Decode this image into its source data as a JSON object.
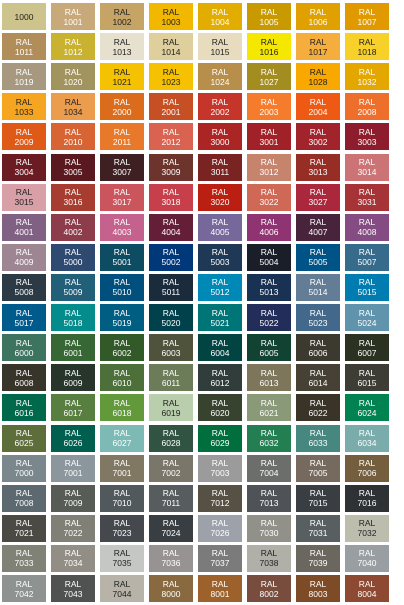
{
  "swatches": [
    {
      "prefix": "",
      "code": "1000",
      "bg": "#CDC38C",
      "fg": "#222222"
    },
    {
      "prefix": "RAL",
      "code": "1001",
      "bg": "#C7A97A",
      "fg": "#ffffff"
    },
    {
      "prefix": "RAL",
      "code": "1002",
      "bg": "#C6A466",
      "fg": "#222222"
    },
    {
      "prefix": "RAL",
      "code": "1003",
      "bg": "#F2B800",
      "fg": "#222222"
    },
    {
      "prefix": "RAL",
      "code": "1004",
      "bg": "#E2AD00",
      "fg": "#ffffff"
    },
    {
      "prefix": "RAL",
      "code": "1005",
      "bg": "#C99A00",
      "fg": "#ffffff"
    },
    {
      "prefix": "RAL",
      "code": "1006",
      "bg": "#E0A100",
      "fg": "#ffffff"
    },
    {
      "prefix": "RAL",
      "code": "1007",
      "bg": "#E09A00",
      "fg": "#ffffff"
    },
    {
      "prefix": "RAL",
      "code": "1011",
      "bg": "#B18D59",
      "fg": "#ffffff"
    },
    {
      "prefix": "RAL",
      "code": "1012",
      "bg": "#C8B22F",
      "fg": "#ffffff"
    },
    {
      "prefix": "RAL",
      "code": "1013",
      "bg": "#E6E1CF",
      "fg": "#222222"
    },
    {
      "prefix": "RAL",
      "code": "1014",
      "bg": "#DECF9D",
      "fg": "#222222"
    },
    {
      "prefix": "RAL",
      "code": "1015",
      "bg": "#E7DDBE",
      "fg": "#222222"
    },
    {
      "prefix": "RAL",
      "code": "1016",
      "bg": "#F5E700",
      "fg": "#222222"
    },
    {
      "prefix": "RAL",
      "code": "1017",
      "bg": "#F5AE3D",
      "fg": "#222222"
    },
    {
      "prefix": "RAL",
      "code": "1018",
      "bg": "#F7D02A",
      "fg": "#222222"
    },
    {
      "prefix": "RAL",
      "code": "1019",
      "bg": "#A69980",
      "fg": "#ffffff"
    },
    {
      "prefix": "RAL",
      "code": "1020",
      "bg": "#A2945F",
      "fg": "#ffffff"
    },
    {
      "prefix": "RAL",
      "code": "1021",
      "bg": "#F4C200",
      "fg": "#222222"
    },
    {
      "prefix": "RAL",
      "code": "1023",
      "bg": "#F6C100",
      "fg": "#222222"
    },
    {
      "prefix": "RAL",
      "code": "1024",
      "bg": "#B78E4A",
      "fg": "#ffffff"
    },
    {
      "prefix": "RAL",
      "code": "1027",
      "bg": "#A38C20",
      "fg": "#ffffff"
    },
    {
      "prefix": "RAL",
      "code": "1028",
      "bg": "#F9A800",
      "fg": "#222222"
    },
    {
      "prefix": "RAL",
      "code": "1032",
      "bg": "#E4A700",
      "fg": "#ffffff"
    },
    {
      "prefix": "RAL",
      "code": "1033",
      "bg": "#F6A521",
      "fg": "#222222"
    },
    {
      "prefix": "RAL",
      "code": "1034",
      "bg": "#EB9D4D",
      "fg": "#222222"
    },
    {
      "prefix": "RAL",
      "code": "2000",
      "bg": "#DB6C1C",
      "fg": "#ffffff"
    },
    {
      "prefix": "RAL",
      "code": "2001",
      "bg": "#C64F24",
      "fg": "#ffffff"
    },
    {
      "prefix": "RAL",
      "code": "2002",
      "bg": "#C6352A",
      "fg": "#ffffff"
    },
    {
      "prefix": "RAL",
      "code": "2003",
      "bg": "#F67C2D",
      "fg": "#ffffff"
    },
    {
      "prefix": "RAL",
      "code": "2004",
      "bg": "#EE5A14",
      "fg": "#ffffff"
    },
    {
      "prefix": "RAL",
      "code": "2008",
      "bg": "#EE6E2C",
      "fg": "#ffffff"
    },
    {
      "prefix": "RAL",
      "code": "2009",
      "bg": "#E05A17",
      "fg": "#ffffff"
    },
    {
      "prefix": "RAL",
      "code": "2010",
      "bg": "#D96433",
      "fg": "#ffffff"
    },
    {
      "prefix": "RAL",
      "code": "2011",
      "bg": "#E8782A",
      "fg": "#ffffff"
    },
    {
      "prefix": "RAL",
      "code": "2012",
      "bg": "#DA6251",
      "fg": "#ffffff"
    },
    {
      "prefix": "RAL",
      "code": "3000",
      "bg": "#AB2525",
      "fg": "#ffffff"
    },
    {
      "prefix": "RAL",
      "code": "3001",
      "bg": "#A02128",
      "fg": "#ffffff"
    },
    {
      "prefix": "RAL",
      "code": "3002",
      "bg": "#A1232B",
      "fg": "#ffffff"
    },
    {
      "prefix": "RAL",
      "code": "3003",
      "bg": "#8D1D2C",
      "fg": "#ffffff"
    },
    {
      "prefix": "RAL",
      "code": "3004",
      "bg": "#6B1C23",
      "fg": "#ffffff"
    },
    {
      "prefix": "RAL",
      "code": "3005",
      "bg": "#59191F",
      "fg": "#ffffff"
    },
    {
      "prefix": "RAL",
      "code": "3007",
      "bg": "#3E2022",
      "fg": "#ffffff"
    },
    {
      "prefix": "RAL",
      "code": "3009",
      "bg": "#6D342D",
      "fg": "#ffffff"
    },
    {
      "prefix": "RAL",
      "code": "3011",
      "bg": "#792423",
      "fg": "#ffffff"
    },
    {
      "prefix": "RAL",
      "code": "3012",
      "bg": "#C6846D",
      "fg": "#ffffff"
    },
    {
      "prefix": "RAL",
      "code": "3013",
      "bg": "#972E25",
      "fg": "#ffffff"
    },
    {
      "prefix": "RAL",
      "code": "3014",
      "bg": "#CB7375",
      "fg": "#ffffff"
    },
    {
      "prefix": "RAL",
      "code": "3015",
      "bg": "#D8A0A6",
      "fg": "#222222"
    },
    {
      "prefix": "RAL",
      "code": "3016",
      "bg": "#A63D30",
      "fg": "#ffffff"
    },
    {
      "prefix": "RAL",
      "code": "3017",
      "bg": "#CA555D",
      "fg": "#ffffff"
    },
    {
      "prefix": "RAL",
      "code": "3018",
      "bg": "#C63F4A",
      "fg": "#ffffff"
    },
    {
      "prefix": "RAL",
      "code": "3020",
      "bg": "#BB1F11",
      "fg": "#ffffff"
    },
    {
      "prefix": "RAL",
      "code": "3022",
      "bg": "#CF6955",
      "fg": "#ffffff"
    },
    {
      "prefix": "RAL",
      "code": "3027",
      "bg": "#AB273C",
      "fg": "#ffffff"
    },
    {
      "prefix": "RAL",
      "code": "3031",
      "bg": "#A63437",
      "fg": "#ffffff"
    },
    {
      "prefix": "RAL",
      "code": "4001",
      "bg": "#816183",
      "fg": "#ffffff"
    },
    {
      "prefix": "RAL",
      "code": "4002",
      "bg": "#8D3C4B",
      "fg": "#ffffff"
    },
    {
      "prefix": "RAL",
      "code": "4003",
      "bg": "#C4618C",
      "fg": "#ffffff"
    },
    {
      "prefix": "RAL",
      "code": "4004",
      "bg": "#651E38",
      "fg": "#ffffff"
    },
    {
      "prefix": "RAL",
      "code": "4005",
      "bg": "#76689A",
      "fg": "#ffffff"
    },
    {
      "prefix": "RAL",
      "code": "4006",
      "bg": "#903373",
      "fg": "#ffffff"
    },
    {
      "prefix": "RAL",
      "code": "4007",
      "bg": "#47243C",
      "fg": "#ffffff"
    },
    {
      "prefix": "RAL",
      "code": "4008",
      "bg": "#844C82",
      "fg": "#ffffff"
    },
    {
      "prefix": "RAL",
      "code": "4009",
      "bg": "#9D8692",
      "fg": "#ffffff"
    },
    {
      "prefix": "RAL",
      "code": "5000",
      "bg": "#2F4A71",
      "fg": "#ffffff"
    },
    {
      "prefix": "RAL",
      "code": "5001",
      "bg": "#0E4C64",
      "fg": "#ffffff"
    },
    {
      "prefix": "RAL",
      "code": "5002",
      "bg": "#00387A",
      "fg": "#ffffff"
    },
    {
      "prefix": "RAL",
      "code": "5003",
      "bg": "#1F3855",
      "fg": "#ffffff"
    },
    {
      "prefix": "RAL",
      "code": "5004",
      "bg": "#191E28",
      "fg": "#ffffff"
    },
    {
      "prefix": "RAL",
      "code": "5005",
      "bg": "#005387",
      "fg": "#ffffff"
    },
    {
      "prefix": "RAL",
      "code": "5007",
      "bg": "#376B8C",
      "fg": "#ffffff"
    },
    {
      "prefix": "RAL",
      "code": "5008",
      "bg": "#2B3A44",
      "fg": "#ffffff"
    },
    {
      "prefix": "RAL",
      "code": "5009",
      "bg": "#225F78",
      "fg": "#ffffff"
    },
    {
      "prefix": "RAL",
      "code": "5010",
      "bg": "#004F7C",
      "fg": "#ffffff"
    },
    {
      "prefix": "RAL",
      "code": "5011",
      "bg": "#1A2B3C",
      "fg": "#ffffff"
    },
    {
      "prefix": "RAL",
      "code": "5012",
      "bg": "#0089B6",
      "fg": "#ffffff"
    },
    {
      "prefix": "RAL",
      "code": "5013",
      "bg": "#193153",
      "fg": "#ffffff"
    },
    {
      "prefix": "RAL",
      "code": "5014",
      "bg": "#637D96",
      "fg": "#ffffff"
    },
    {
      "prefix": "RAL",
      "code": "5015",
      "bg": "#007CB0",
      "fg": "#ffffff"
    },
    {
      "prefix": "RAL",
      "code": "5017",
      "bg": "#005B8C",
      "fg": "#ffffff"
    },
    {
      "prefix": "RAL",
      "code": "5018",
      "bg": "#048B8C",
      "fg": "#ffffff"
    },
    {
      "prefix": "RAL",
      "code": "5019",
      "bg": "#005E83",
      "fg": "#ffffff"
    },
    {
      "prefix": "RAL",
      "code": "5020",
      "bg": "#00414B",
      "fg": "#ffffff"
    },
    {
      "prefix": "RAL",
      "code": "5021",
      "bg": "#007577",
      "fg": "#ffffff"
    },
    {
      "prefix": "RAL",
      "code": "5022",
      "bg": "#222D5A",
      "fg": "#ffffff"
    },
    {
      "prefix": "RAL",
      "code": "5023",
      "bg": "#42698C",
      "fg": "#ffffff"
    },
    {
      "prefix": "RAL",
      "code": "5024",
      "bg": "#6093AC",
      "fg": "#ffffff"
    },
    {
      "prefix": "RAL",
      "code": "6000",
      "bg": "#3C7460",
      "fg": "#ffffff"
    },
    {
      "prefix": "RAL",
      "code": "6001",
      "bg": "#366735",
      "fg": "#ffffff"
    },
    {
      "prefix": "RAL",
      "code": "6002",
      "bg": "#325928",
      "fg": "#ffffff"
    },
    {
      "prefix": "RAL",
      "code": "6003",
      "bg": "#50533C",
      "fg": "#ffffff"
    },
    {
      "prefix": "RAL",
      "code": "6004",
      "bg": "#024442",
      "fg": "#ffffff"
    },
    {
      "prefix": "RAL",
      "code": "6005",
      "bg": "#114232",
      "fg": "#ffffff"
    },
    {
      "prefix": "RAL",
      "code": "6006",
      "bg": "#3C392E",
      "fg": "#ffffff"
    },
    {
      "prefix": "RAL",
      "code": "6007",
      "bg": "#2C3222",
      "fg": "#ffffff"
    },
    {
      "prefix": "RAL",
      "code": "6008",
      "bg": "#37342A",
      "fg": "#ffffff"
    },
    {
      "prefix": "RAL",
      "code": "6009",
      "bg": "#27352A",
      "fg": "#ffffff"
    },
    {
      "prefix": "RAL",
      "code": "6010",
      "bg": "#4D6F39",
      "fg": "#ffffff"
    },
    {
      "prefix": "RAL",
      "code": "6011",
      "bg": "#6C7C59",
      "fg": "#ffffff"
    },
    {
      "prefix": "RAL",
      "code": "6012",
      "bg": "#303D3A",
      "fg": "#ffffff"
    },
    {
      "prefix": "RAL",
      "code": "6013",
      "bg": "#7D765A",
      "fg": "#ffffff"
    },
    {
      "prefix": "RAL",
      "code": "6014",
      "bg": "#474135",
      "fg": "#ffffff"
    },
    {
      "prefix": "RAL",
      "code": "6015",
      "bg": "#3D3D36",
      "fg": "#ffffff"
    },
    {
      "prefix": "RAL",
      "code": "6016",
      "bg": "#00694C",
      "fg": "#ffffff"
    },
    {
      "prefix": "RAL",
      "code": "6017",
      "bg": "#587F40",
      "fg": "#ffffff"
    },
    {
      "prefix": "RAL",
      "code": "6018",
      "bg": "#61993B",
      "fg": "#ffffff"
    },
    {
      "prefix": "RAL",
      "code": "6019",
      "bg": "#B9CEAC",
      "fg": "#222222"
    },
    {
      "prefix": "RAL",
      "code": "6020",
      "bg": "#37422F",
      "fg": "#ffffff"
    },
    {
      "prefix": "RAL",
      "code": "6021",
      "bg": "#8A9977",
      "fg": "#ffffff"
    },
    {
      "prefix": "RAL",
      "code": "6022",
      "bg": "#3A3327",
      "fg": "#ffffff"
    },
    {
      "prefix": "RAL",
      "code": "6024",
      "bg": "#008351",
      "fg": "#ffffff"
    },
    {
      "prefix": "RAL",
      "code": "6025",
      "bg": "#5E6E3B",
      "fg": "#ffffff"
    },
    {
      "prefix": "RAL",
      "code": "6026",
      "bg": "#005F4E",
      "fg": "#ffffff"
    },
    {
      "prefix": "RAL",
      "code": "6027",
      "bg": "#7EBAB5",
      "fg": "#ffffff"
    },
    {
      "prefix": "RAL",
      "code": "6028",
      "bg": "#315442",
      "fg": "#ffffff"
    },
    {
      "prefix": "RAL",
      "code": "6029",
      "bg": "#006F3D",
      "fg": "#ffffff"
    },
    {
      "prefix": "RAL",
      "code": "6032",
      "bg": "#237F52",
      "fg": "#ffffff"
    },
    {
      "prefix": "RAL",
      "code": "6033",
      "bg": "#46877F",
      "fg": "#ffffff"
    },
    {
      "prefix": "RAL",
      "code": "6034",
      "bg": "#7AACAC",
      "fg": "#ffffff"
    },
    {
      "prefix": "RAL",
      "code": "7000",
      "bg": "#7A888E",
      "fg": "#ffffff"
    },
    {
      "prefix": "RAL",
      "code": "7001",
      "bg": "#8C969D",
      "fg": "#ffffff"
    },
    {
      "prefix": "RAL",
      "code": "7001",
      "bg": "#817863",
      "fg": "#ffffff"
    },
    {
      "prefix": "RAL",
      "code": "7002",
      "bg": "#7A7669",
      "fg": "#ffffff"
    },
    {
      "prefix": "RAL",
      "code": "7003",
      "bg": "#9B9B9B",
      "fg": "#ffffff"
    },
    {
      "prefix": "RAL",
      "code": "7004",
      "bg": "#6C6E6B",
      "fg": "#ffffff"
    },
    {
      "prefix": "RAL",
      "code": "7005",
      "bg": "#766A5E",
      "fg": "#ffffff"
    },
    {
      "prefix": "RAL",
      "code": "7006",
      "bg": "#745E3D",
      "fg": "#ffffff"
    },
    {
      "prefix": "RAL",
      "code": "7008",
      "bg": "#5D6970",
      "fg": "#ffffff"
    },
    {
      "prefix": "RAL",
      "code": "7009",
      "bg": "#585C56",
      "fg": "#ffffff"
    },
    {
      "prefix": "RAL",
      "code": "7010",
      "bg": "#52595D",
      "fg": "#ffffff"
    },
    {
      "prefix": "RAL",
      "code": "7011",
      "bg": "#575D5E",
      "fg": "#ffffff"
    },
    {
      "prefix": "RAL",
      "code": "7012",
      "bg": "#575044",
      "fg": "#ffffff"
    },
    {
      "prefix": "RAL",
      "code": "7013",
      "bg": "#4F5358",
      "fg": "#ffffff"
    },
    {
      "prefix": "RAL",
      "code": "7015",
      "bg": "#383E42",
      "fg": "#ffffff"
    },
    {
      "prefix": "RAL",
      "code": "7016",
      "bg": "#2F3234",
      "fg": "#ffffff"
    },
    {
      "prefix": "RAL",
      "code": "7021",
      "bg": "#4C4A44",
      "fg": "#ffffff"
    },
    {
      "prefix": "RAL",
      "code": "7022",
      "bg": "#808076",
      "fg": "#ffffff"
    },
    {
      "prefix": "RAL",
      "code": "7023",
      "bg": "#45494E",
      "fg": "#ffffff"
    },
    {
      "prefix": "RAL",
      "code": "7024",
      "bg": "#393E43",
      "fg": "#ffffff"
    },
    {
      "prefix": "RAL",
      "code": "7026",
      "bg": "#9DA1AA",
      "fg": "#ffffff"
    },
    {
      "prefix": "RAL",
      "code": "7030",
      "bg": "#919089",
      "fg": "#ffffff"
    },
    {
      "prefix": "RAL",
      "code": "7031",
      "bg": "#575F60",
      "fg": "#ffffff"
    },
    {
      "prefix": "RAL",
      "code": "7032",
      "bg": "#BDBDAE",
      "fg": "#222222"
    },
    {
      "prefix": "RAL",
      "code": "7033",
      "bg": "#7F8274",
      "fg": "#ffffff"
    },
    {
      "prefix": "RAL",
      "code": "7034",
      "bg": "#928E85",
      "fg": "#ffffff"
    },
    {
      "prefix": "RAL",
      "code": "7035",
      "bg": "#C5C7C4",
      "fg": "#222222"
    },
    {
      "prefix": "RAL",
      "code": "7036",
      "bg": "#979392",
      "fg": "#ffffff"
    },
    {
      "prefix": "RAL",
      "code": "7037",
      "bg": "#7A7B7A",
      "fg": "#ffffff"
    },
    {
      "prefix": "RAL",
      "code": "7038",
      "bg": "#B0B0A9",
      "fg": "#222222"
    },
    {
      "prefix": "RAL",
      "code": "7039",
      "bg": "#6B665E",
      "fg": "#ffffff"
    },
    {
      "prefix": "RAL",
      "code": "7040",
      "bg": "#989EA1",
      "fg": "#ffffff"
    },
    {
      "prefix": "RAL",
      "code": "7042",
      "bg": "#8E9291",
      "fg": "#ffffff"
    },
    {
      "prefix": "RAL",
      "code": "7043",
      "bg": "#4F5250",
      "fg": "#ffffff"
    },
    {
      "prefix": "RAL",
      "code": "7044",
      "bg": "#B7B3A8",
      "fg": "#222222"
    },
    {
      "prefix": "RAL",
      "code": "8000",
      "bg": "#89693F",
      "fg": "#ffffff"
    },
    {
      "prefix": "RAL",
      "code": "8001",
      "bg": "#9D622B",
      "fg": "#ffffff"
    },
    {
      "prefix": "RAL",
      "code": "8002",
      "bg": "#794D3E",
      "fg": "#ffffff"
    },
    {
      "prefix": "RAL",
      "code": "8003",
      "bg": "#7E4B27",
      "fg": "#ffffff"
    },
    {
      "prefix": "RAL",
      "code": "8004",
      "bg": "#8D4931",
      "fg": "#ffffff"
    }
  ]
}
